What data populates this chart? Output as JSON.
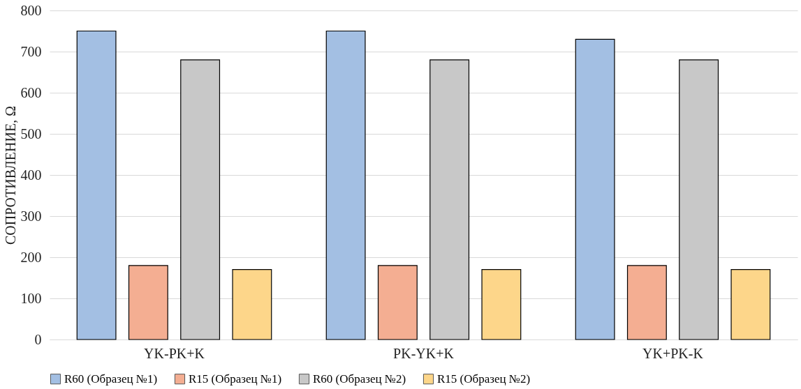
{
  "chart_data": {
    "type": "bar",
    "ylabel": "СОПРОТИВЛЕНИЕ, Ω",
    "categories": [
      "YK-PK+K",
      "PK-YK+K",
      "YK+PK-K"
    ],
    "series": [
      {
        "name": "R60 (Образец №1)",
        "color": "#a3bfe3",
        "values": [
          750,
          750,
          730
        ]
      },
      {
        "name": "R15 (Образец №1)",
        "color": "#f4ae92",
        "values": [
          180,
          180,
          180
        ]
      },
      {
        "name": "R60 (Образец №2)",
        "color": "#c8c8c8",
        "values": [
          680,
          680,
          680
        ]
      },
      {
        "name": "R15 (Образец №2)",
        "color": "#fdd68a",
        "values": [
          170,
          170,
          170
        ]
      }
    ],
    "ylim": [
      0,
      800
    ],
    "yticks": [
      0,
      100,
      200,
      300,
      400,
      500,
      600,
      700,
      800
    ],
    "grid": "y",
    "legend": "bottom"
  }
}
